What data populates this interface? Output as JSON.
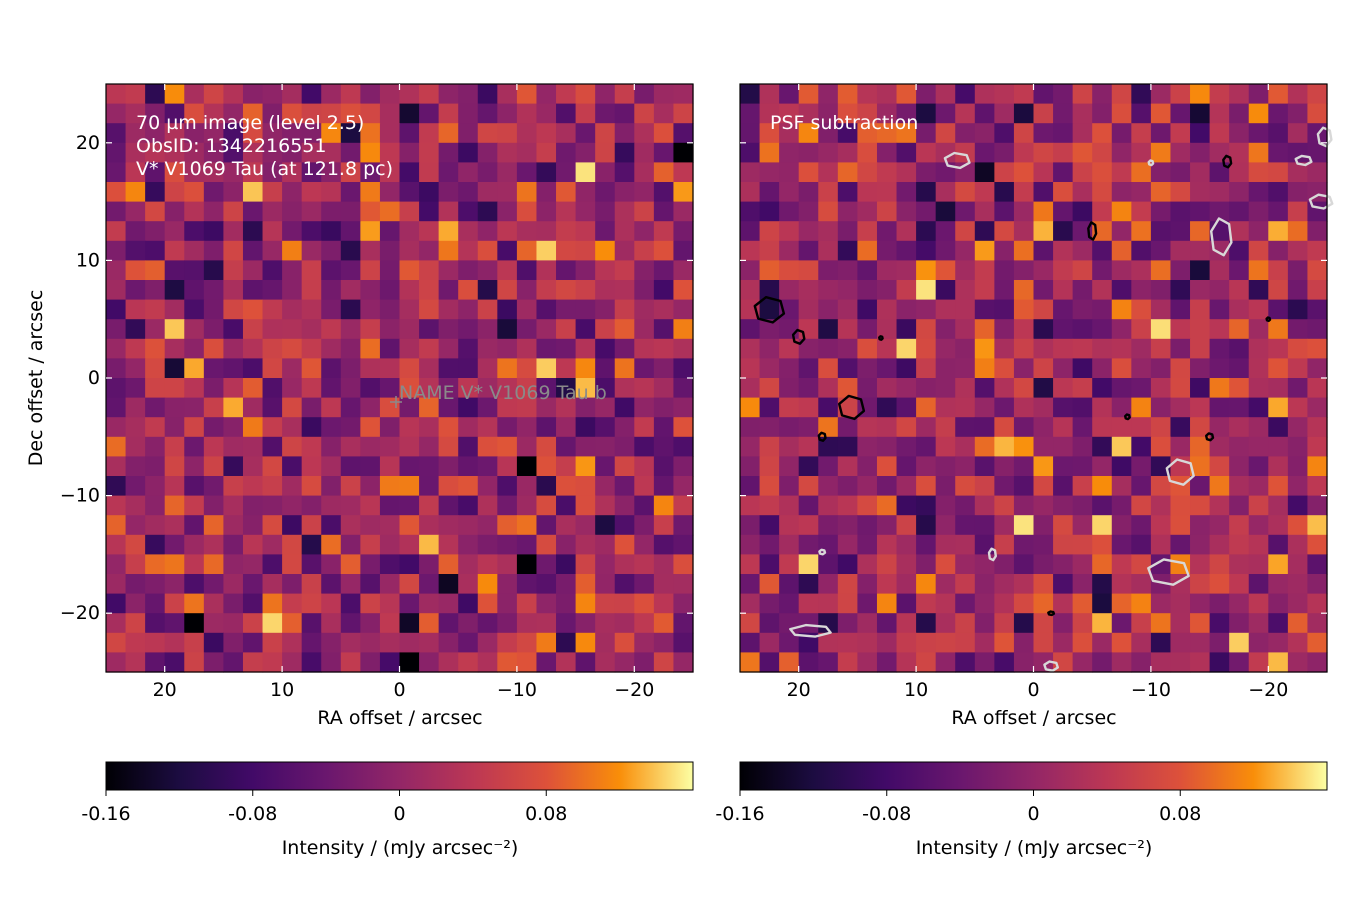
{
  "figure_title": "",
  "panels": [
    {
      "id": "left",
      "annotation_lines": [
        "70 µm image (level 2.5)",
        "ObsID: 1342216551",
        "V* V1069 Tau (at 121.8 pc)"
      ],
      "marker_label": "NAME V* V1069 Tau b",
      "xlabel": "RA offset / arcsec",
      "ylabel": "Dec offset / arcsec",
      "colorbar_label": "Intensity / (mJy arcsec⁻²)"
    },
    {
      "id": "right",
      "annotation_lines": [
        "PSF subtraction"
      ],
      "xlabel": "RA offset / arcsec",
      "ylabel": "",
      "colorbar_label": "Intensity / (mJy arcsec⁻²)"
    }
  ],
  "chart_data": [
    {
      "type": "heatmap",
      "title": "70 µm image (level 2.5)",
      "xlabel": "RA offset / arcsec",
      "ylabel": "Dec offset / arcsec",
      "xlim": [
        25,
        -25
      ],
      "ylim": [
        -25,
        25
      ],
      "xticks": [
        20,
        10,
        0,
        -10,
        -20
      ],
      "xtick_labels": [
        "20",
        "10",
        "0",
        "−10",
        "−20"
      ],
      "yticks": [
        20,
        10,
        0,
        -10,
        -20
      ],
      "ytick_labels": [
        "20",
        "10",
        "0",
        "−10",
        "−20"
      ],
      "grid_size": 30,
      "colormap": "inferno",
      "color_range": [
        -0.16,
        0.16
      ],
      "colorbar_ticks": [
        -0.16,
        -0.08,
        0,
        0.08
      ],
      "colorbar_tick_labels": [
        "-0.16",
        "-0.08",
        "0",
        "0.08"
      ],
      "colorbar_label": "Intensity / (mJy arcsec⁻²)",
      "target_marker": {
        "ra": 0.3,
        "dec": -2.2,
        "label": "NAME V* V1069 Tau b",
        "color": "#808080"
      },
      "features": [
        {
          "ra": 19,
          "dec": 4.5,
          "value": 0.14,
          "note": "bright clump"
        },
        {
          "ra": 14,
          "dec": -2,
          "value": 0.13,
          "note": "bright clump"
        },
        {
          "ra": -4,
          "dec": 13,
          "value": 0.13,
          "note": "bright pixel"
        },
        {
          "ra": -16,
          "dec": 18,
          "value": 0.15,
          "note": "bright pixel"
        },
        {
          "ra": -11,
          "dec": -7.5,
          "value": -0.16,
          "note": "dark pixel"
        },
        {
          "ra": -11,
          "dec": -16,
          "value": -0.16,
          "note": "dark pixel"
        },
        {
          "ra": 17,
          "dec": -21,
          "value": -0.16,
          "note": "dark pixel"
        },
        {
          "ra": -1.5,
          "dec": -24,
          "value": -0.16,
          "note": "dark pixel"
        },
        {
          "ra": -24,
          "dec": 20,
          "value": -0.16,
          "note": "dark pixel"
        }
      ]
    },
    {
      "type": "heatmap",
      "title": "PSF subtraction",
      "xlabel": "RA offset / arcsec",
      "ylabel": "",
      "xlim": [
        25,
        -25
      ],
      "ylim": [
        -25,
        25
      ],
      "xticks": [
        20,
        10,
        0,
        -10,
        -20
      ],
      "xtick_labels": [
        "20",
        "10",
        "0",
        "−10",
        "−20"
      ],
      "yticks": [
        20,
        10,
        0,
        -10,
        -20
      ],
      "grid_size": 30,
      "colormap": "inferno",
      "color_range": [
        -0.16,
        0.16
      ],
      "colorbar_ticks": [
        -0.16,
        -0.08,
        0,
        0.08
      ],
      "colorbar_tick_labels": [
        "-0.16",
        "-0.08",
        "0",
        "0.08"
      ],
      "colorbar_label": "Intensity / (mJy arcsec⁻²)",
      "positive_contour_color": "#000000",
      "negative_contour_color": "#d8d8d8",
      "positive_contours": [
        {
          "ra": 22.5,
          "dec": 5.8,
          "w": 2.6,
          "h": 2.2
        },
        {
          "ra": 20,
          "dec": 3.5,
          "w": 1.0,
          "h": 1.2
        },
        {
          "ra": 15.5,
          "dec": -2.5,
          "w": 2.2,
          "h": 2.0
        },
        {
          "ra": 18,
          "dec": -5,
          "w": 0.6,
          "h": 0.7
        },
        {
          "ra": 13,
          "dec": 3.4,
          "w": 0.3,
          "h": 0.3
        },
        {
          "ra": -5,
          "dec": 12.5,
          "w": 0.7,
          "h": 1.5
        },
        {
          "ra": -8,
          "dec": -3.3,
          "w": 0.4,
          "h": 0.4
        },
        {
          "ra": -16.5,
          "dec": 18.4,
          "w": 0.7,
          "h": 1.0
        },
        {
          "ra": -15,
          "dec": -5,
          "w": 0.6,
          "h": 0.6
        },
        {
          "ra": -20,
          "dec": 5,
          "w": 0.3,
          "h": 0.3
        },
        {
          "ra": -1.5,
          "dec": -20,
          "w": 0.5,
          "h": 0.3
        }
      ],
      "negative_contours": [
        {
          "ra": 6.5,
          "dec": 18.5,
          "w": 2.2,
          "h": 1.3
        },
        {
          "ra": -12.5,
          "dec": -8,
          "w": 2.4,
          "h": 2.2
        },
        {
          "ra": -11.5,
          "dec": -16.5,
          "w": 3.6,
          "h": 2.2
        },
        {
          "ra": -16,
          "dec": 12,
          "w": 1.8,
          "h": 3.2
        },
        {
          "ra": 19,
          "dec": -21.5,
          "w": 3.6,
          "h": 1.0
        },
        {
          "ra": 3.5,
          "dec": -15,
          "w": 0.6,
          "h": 1.0
        },
        {
          "ra": -23,
          "dec": 18.5,
          "w": 1.4,
          "h": 0.8
        },
        {
          "ra": -24.5,
          "dec": 15,
          "w": 2.0,
          "h": 1.2
        },
        {
          "ra": -24.8,
          "dec": 20.5,
          "w": 1.2,
          "h": 1.6
        },
        {
          "ra": -1.5,
          "dec": -24.5,
          "w": 1.2,
          "h": 0.8
        },
        {
          "ra": 18,
          "dec": -14.8,
          "w": 0.5,
          "h": 0.4
        },
        {
          "ra": -10,
          "dec": 18.3,
          "w": 0.4,
          "h": 0.4
        }
      ]
    }
  ]
}
